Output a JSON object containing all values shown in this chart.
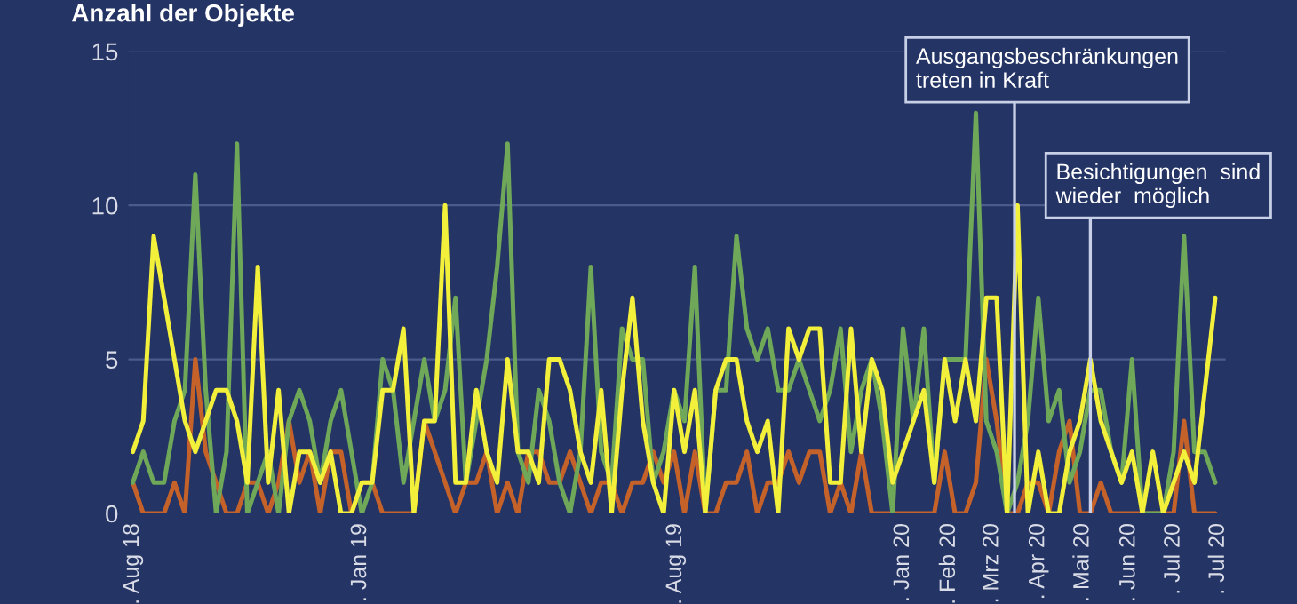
{
  "chart_data": {
    "type": "line",
    "ylabel": "Anzahl der Objekte",
    "x": [
      "2018-08-01",
      "2018-08-08",
      "2018-08-15",
      "2018-08-22",
      "2018-08-29",
      "2018-09-05",
      "2018-09-12",
      "2018-09-19",
      "2018-09-26",
      "2018-10-03",
      "2018-10-10",
      "2018-10-17",
      "2018-10-24",
      "2018-10-31",
      "2018-11-07",
      "2018-11-14",
      "2018-11-21",
      "2018-11-28",
      "2018-12-05",
      "2018-12-12",
      "2018-12-19",
      "2018-12-26",
      "2019-01-02",
      "2019-01-09",
      "2019-01-16",
      "2019-01-23",
      "2019-01-30",
      "2019-02-06",
      "2019-02-13",
      "2019-02-20",
      "2019-02-27",
      "2019-03-06",
      "2019-03-13",
      "2019-03-20",
      "2019-03-27",
      "2019-04-03",
      "2019-04-10",
      "2019-04-17",
      "2019-04-24",
      "2019-05-01",
      "2019-05-08",
      "2019-05-15",
      "2019-05-22",
      "2019-05-29",
      "2019-06-05",
      "2019-06-12",
      "2019-06-19",
      "2019-06-26",
      "2019-07-03",
      "2019-07-10",
      "2019-07-17",
      "2019-07-24",
      "2019-07-31",
      "2019-08-07",
      "2019-08-14",
      "2019-08-21",
      "2019-08-28",
      "2019-09-04",
      "2019-09-11",
      "2019-09-18",
      "2019-09-25",
      "2019-10-02",
      "2019-10-09",
      "2019-10-16",
      "2019-10-23",
      "2019-10-30",
      "2019-11-06",
      "2019-11-13",
      "2019-11-20",
      "2019-11-27",
      "2019-12-04",
      "2019-12-11",
      "2019-12-18",
      "2019-12-25",
      "2020-01-01",
      "2020-01-08",
      "2020-01-15",
      "2020-01-22",
      "2020-01-29",
      "2020-02-05",
      "2020-02-12",
      "2020-02-19",
      "2020-02-26",
      "2020-03-04",
      "2020-03-11",
      "2020-03-18",
      "2020-03-25",
      "2020-04-01",
      "2020-04-08",
      "2020-04-15",
      "2020-04-22",
      "2020-04-29",
      "2020-05-06",
      "2020-05-13",
      "2020-05-20",
      "2020-05-27",
      "2020-06-03",
      "2020-06-10",
      "2020-06-17",
      "2020-06-24",
      "2020-07-01",
      "2020-07-08",
      "2020-07-15",
      "2020-07-22",
      "2020-07-29"
    ],
    "series": [
      {
        "color": "#c5622a",
        "values": [
          1,
          0,
          0,
          0,
          1,
          0,
          5,
          2,
          1,
          0,
          0,
          1,
          1,
          0,
          1,
          3,
          1,
          2,
          0,
          2,
          2,
          0,
          1,
          1,
          0,
          0,
          0,
          0,
          3,
          2,
          1,
          0,
          1,
          1,
          2,
          0,
          1,
          0,
          2,
          2,
          1,
          1,
          2,
          1,
          0,
          1,
          1,
          0,
          1,
          1,
          2,
          1,
          2,
          0,
          2,
          0,
          0,
          1,
          1,
          2,
          0,
          1,
          1,
          2,
          1,
          2,
          2,
          0,
          1,
          0,
          2,
          0,
          0,
          0,
          0,
          0,
          0,
          0,
          2,
          0,
          0,
          1,
          5,
          3,
          0,
          0,
          1,
          1,
          0,
          2,
          3,
          0,
          0,
          1,
          0,
          0,
          0,
          0,
          0,
          0,
          0,
          3,
          0,
          0,
          0
        ]
      },
      {
        "color": "#6fa858",
        "values": [
          1,
          2,
          1,
          1,
          3,
          4,
          11,
          4,
          0,
          2,
          12,
          0,
          1,
          2,
          0,
          3,
          4,
          3,
          1,
          3,
          4,
          2,
          0,
          1,
          5,
          4,
          1,
          3,
          5,
          3,
          4,
          7,
          1,
          3,
          5,
          8,
          12,
          2,
          1,
          4,
          3,
          1,
          0,
          2,
          8,
          2,
          1,
          6,
          5,
          5,
          1,
          2,
          4,
          3,
          8,
          0,
          4,
          4,
          9,
          6,
          5,
          6,
          4,
          4,
          5,
          4,
          3,
          4,
          6,
          2,
          4,
          5,
          3,
          0,
          6,
          3,
          6,
          1,
          5,
          5,
          5,
          13,
          3,
          2,
          0,
          1,
          3,
          7,
          3,
          4,
          1,
          2,
          4,
          4,
          2,
          1,
          5,
          0,
          0,
          0,
          2,
          9,
          2,
          2,
          1
        ]
      },
      {
        "color": "#f2f03a",
        "values": [
          2,
          3,
          9,
          7,
          5,
          3,
          2,
          3,
          4,
          4,
          3,
          1,
          8,
          1,
          4,
          0,
          2,
          2,
          1,
          2,
          0,
          0,
          1,
          1,
          4,
          4,
          6,
          0,
          3,
          3,
          10,
          1,
          1,
          4,
          2,
          1,
          5,
          2,
          2,
          1,
          5,
          5,
          4,
          2,
          1,
          4,
          0,
          4,
          7,
          3,
          1,
          0,
          4,
          2,
          4,
          0,
          4,
          5,
          5,
          3,
          2,
          3,
          0,
          6,
          5,
          6,
          6,
          1,
          1,
          6,
          2,
          5,
          4,
          1,
          2,
          3,
          4,
          1,
          5,
          3,
          5,
          3,
          7,
          7,
          0,
          10,
          0,
          2,
          0,
          0,
          2,
          3,
          5,
          3,
          2,
          1,
          2,
          0,
          2,
          0,
          1,
          2,
          1,
          4,
          7
        ]
      }
    ],
    "xlim": [
      "2018-07-29",
      "2020-08-05"
    ],
    "xticks": [
      {
        "value": "2018-08-01",
        "label": ". Aug 18"
      },
      {
        "value": "2019-01-01",
        "label": ". Jan 19"
      },
      {
        "value": "2019-08-01",
        "label": ". Aug 19"
      },
      {
        "value": "2020-01-01",
        "label": ". Jan 20"
      },
      {
        "value": "2020-02-01",
        "label": ". Feb 20"
      },
      {
        "value": "2020-03-01",
        "label": ". Mrz 20"
      },
      {
        "value": "2020-04-01",
        "label": ". Apr 20"
      },
      {
        "value": "2020-05-01",
        "label": ". Mai 20"
      },
      {
        "value": "2020-06-01",
        "label": ". Jun 20"
      },
      {
        "value": "2020-07-01",
        "label": ". Jul 20"
      },
      {
        "value": "2020-07-31",
        "label": ". Jul 20"
      }
    ],
    "ylim": [
      0,
      15
    ],
    "yticks": [
      0,
      5,
      10,
      15
    ],
    "grid": "y",
    "marker": "none",
    "line_style": "solid",
    "ref_lines": [
      {
        "axis": "x",
        "value": "2020-03-16",
        "label": "Ausgangsbeschränkungen\ntreten in Kraft",
        "color": "#c8d0e8"
      },
      {
        "axis": "x",
        "value": "2020-05-06",
        "label": "Besichtigungen  sind\nwieder  möglich",
        "color": "#c8d0e8"
      }
    ]
  }
}
